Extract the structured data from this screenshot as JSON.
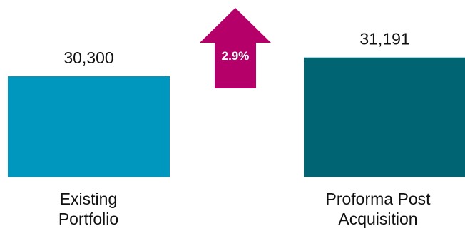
{
  "chart_data": {
    "type": "bar",
    "categories": [
      [
        "Existing",
        "Portfolio"
      ],
      [
        "Proforma Post",
        "Acquisition"
      ]
    ],
    "values": [
      30300,
      31191
    ],
    "value_labels": [
      "30,300",
      "31,191"
    ],
    "colors": [
      "#0097be",
      "#006472"
    ],
    "change": {
      "label": "2.9%",
      "direction": "up",
      "color": "#b5006a"
    },
    "title": "",
    "xlabel": "",
    "ylabel": "",
    "grid": false,
    "legend": "none"
  }
}
